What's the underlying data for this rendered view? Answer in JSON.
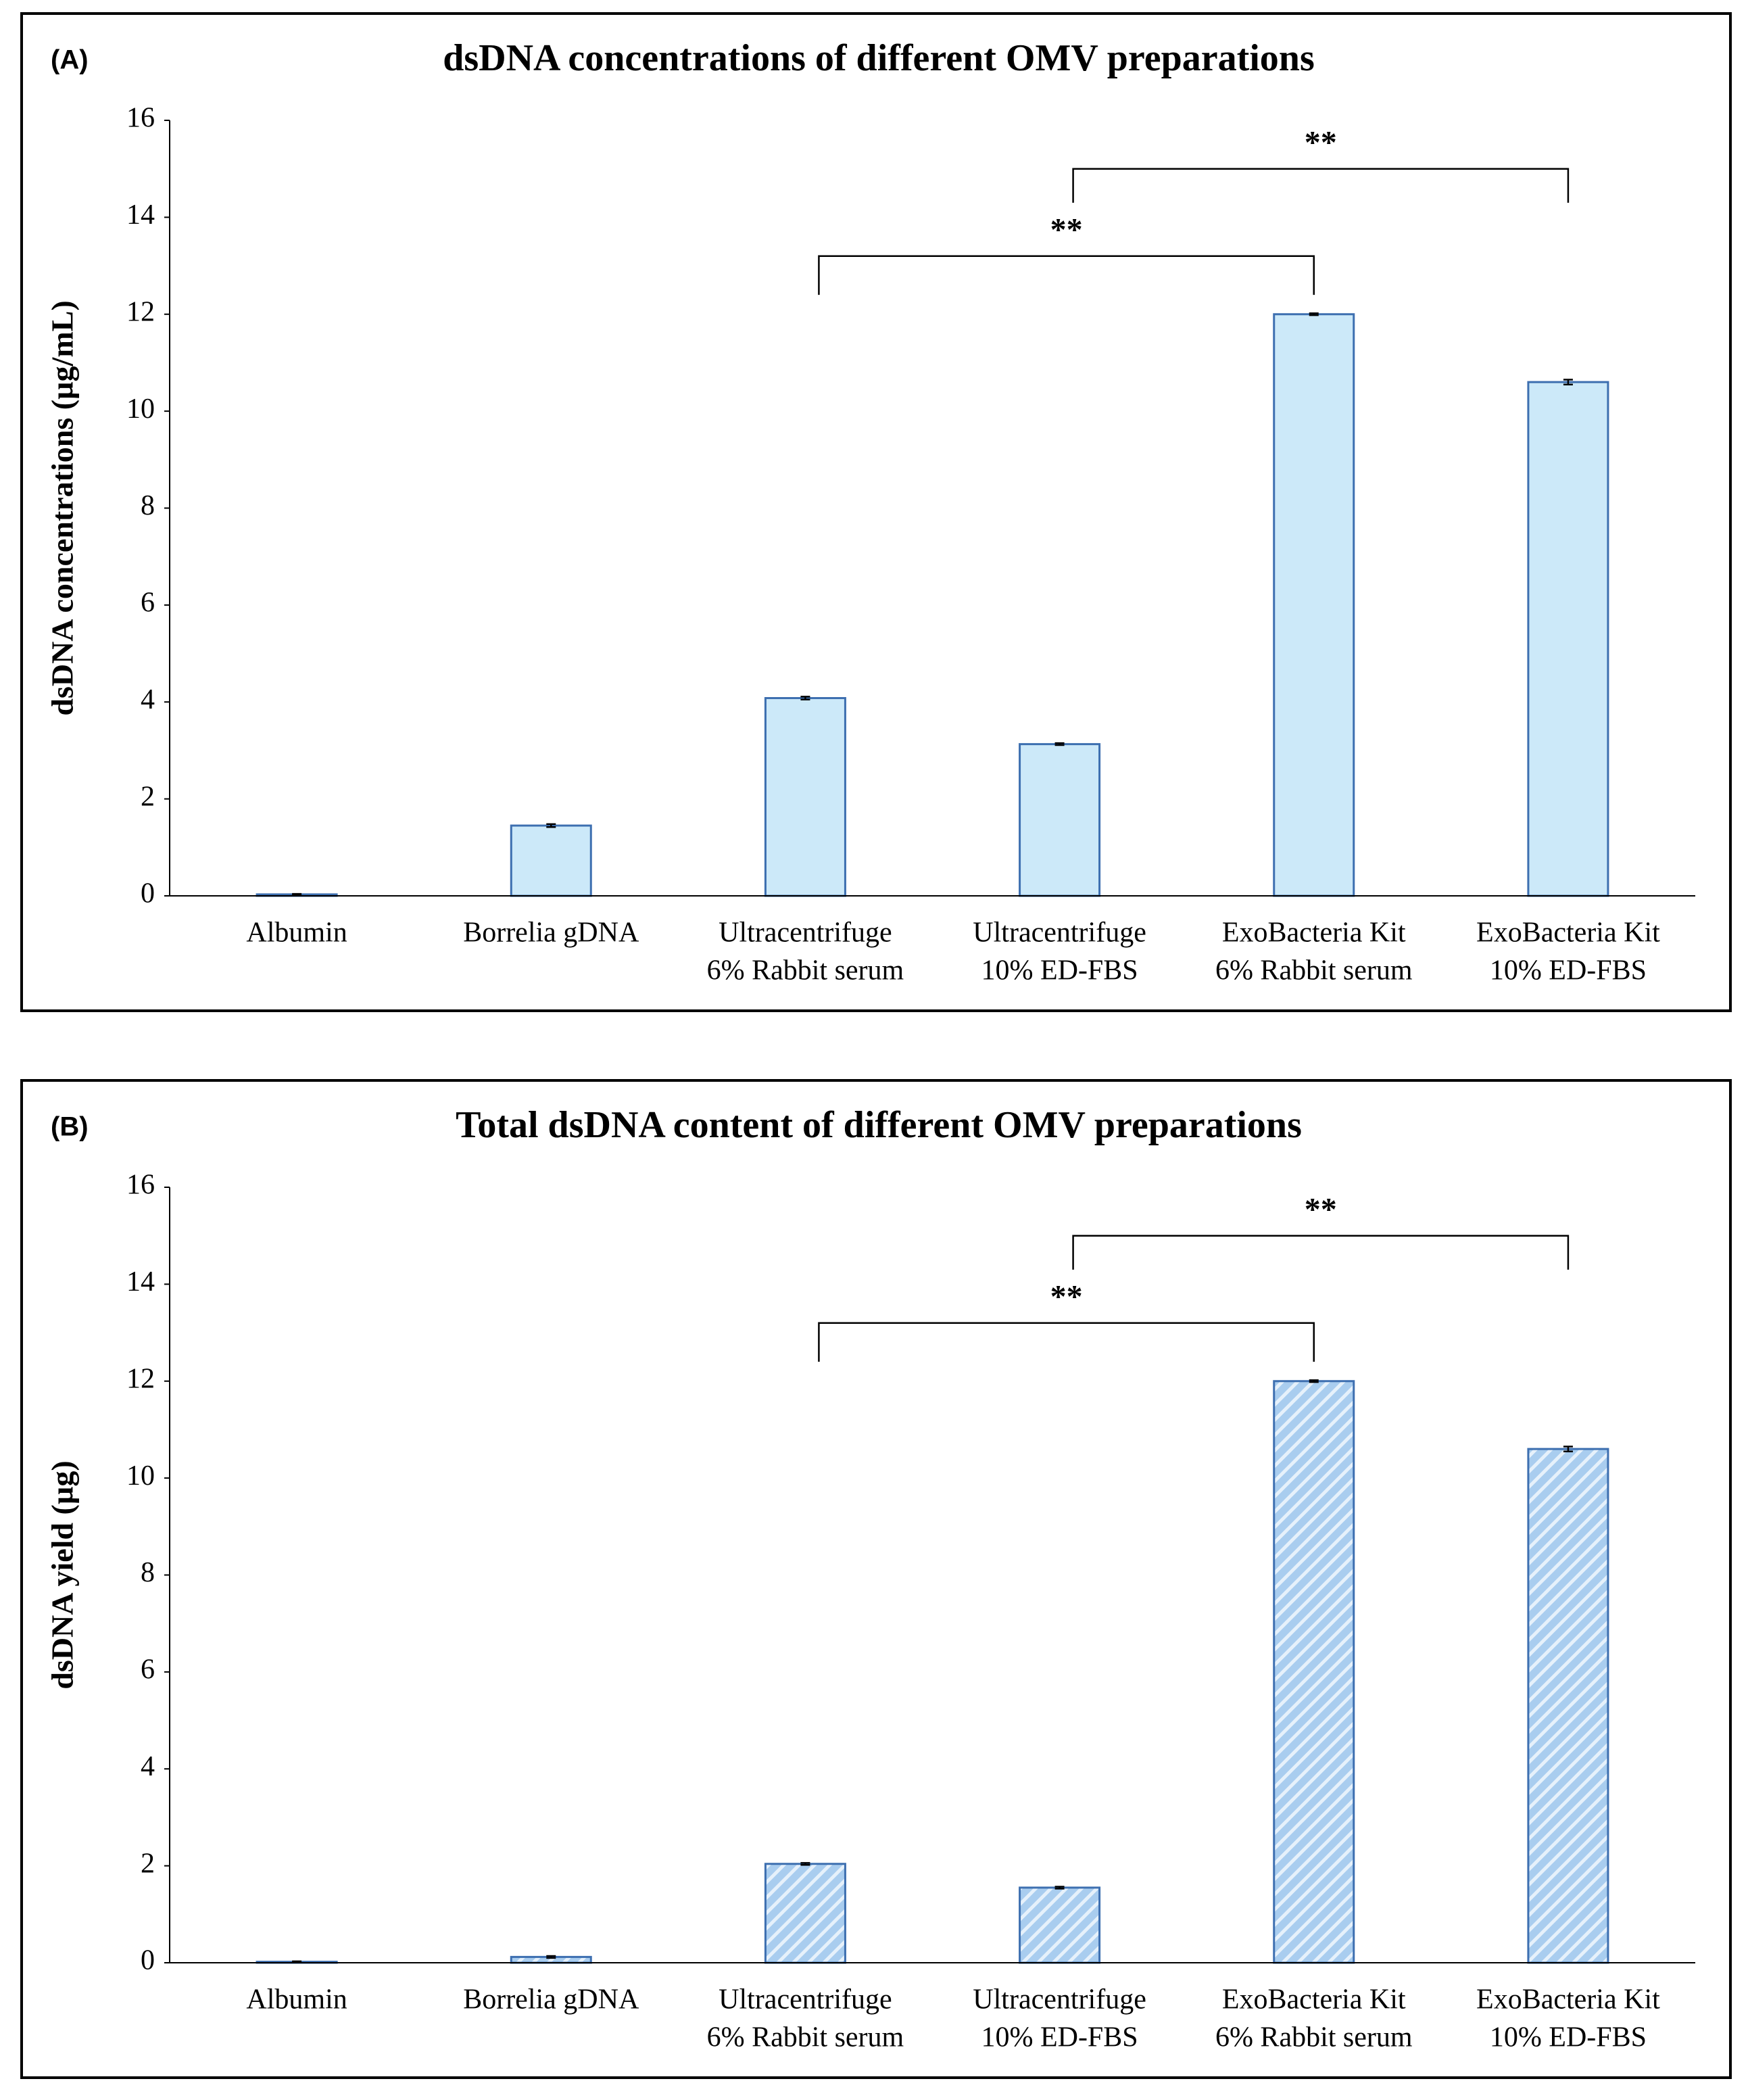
{
  "chart_data": [
    {
      "type": "bar",
      "panel_label": "(A)",
      "title": "dsDNA concentrations of different OMV preparations",
      "y_label": "dsDNA concentrations (µg/mL)",
      "categories": [
        [
          "Albumin"
        ],
        [
          "Borrelia gDNA"
        ],
        [
          "Ultracentrifuge",
          "6% Rabbit serum"
        ],
        [
          "Ultracentrifuge",
          "10% ED-FBS"
        ],
        [
          "ExoBacteria Kit",
          "6% Rabbit serum"
        ],
        [
          "ExoBacteria Kit",
          "10% ED-FBS"
        ]
      ],
      "values": [
        0.03,
        1.45,
        4.08,
        3.13,
        12.0,
        10.6
      ],
      "errors": [
        0.01,
        0.03,
        0.03,
        0.02,
        0.02,
        0.05
      ],
      "color": "#cce9f9",
      "edge_color": "#3d6fb0",
      "hatch": false,
      "ylim": [
        0,
        16
      ],
      "yticks": [
        0,
        2,
        4,
        6,
        8,
        10,
        12,
        14,
        16
      ],
      "annotations": [
        "**",
        "**"
      ]
    },
    {
      "type": "bar",
      "panel_label": "(B)",
      "title": "Total dsDNA content of different OMV preparations",
      "y_label": "dsDNA yield (µg)",
      "categories": [
        [
          "Albumin"
        ],
        [
          "Borrelia gDNA"
        ],
        [
          "Ultracentrifuge",
          "6% Rabbit serum"
        ],
        [
          "Ultracentrifuge",
          "10% ED-FBS"
        ],
        [
          "ExoBacteria Kit",
          "6% Rabbit serum"
        ],
        [
          "ExoBacteria Kit",
          "10% ED-FBS"
        ]
      ],
      "values": [
        0.02,
        0.12,
        2.04,
        1.55,
        12.0,
        10.6
      ],
      "errors": [
        0.01,
        0.02,
        0.02,
        0.02,
        0.02,
        0.05
      ],
      "color": "#a9cdef",
      "edge_color": "#3d6fb0",
      "hatch": true,
      "ylim": [
        0,
        16
      ],
      "yticks": [
        0,
        2,
        4,
        6,
        8,
        10,
        12,
        14,
        16
      ],
      "annotations": [
        "**",
        "**"
      ]
    }
  ]
}
